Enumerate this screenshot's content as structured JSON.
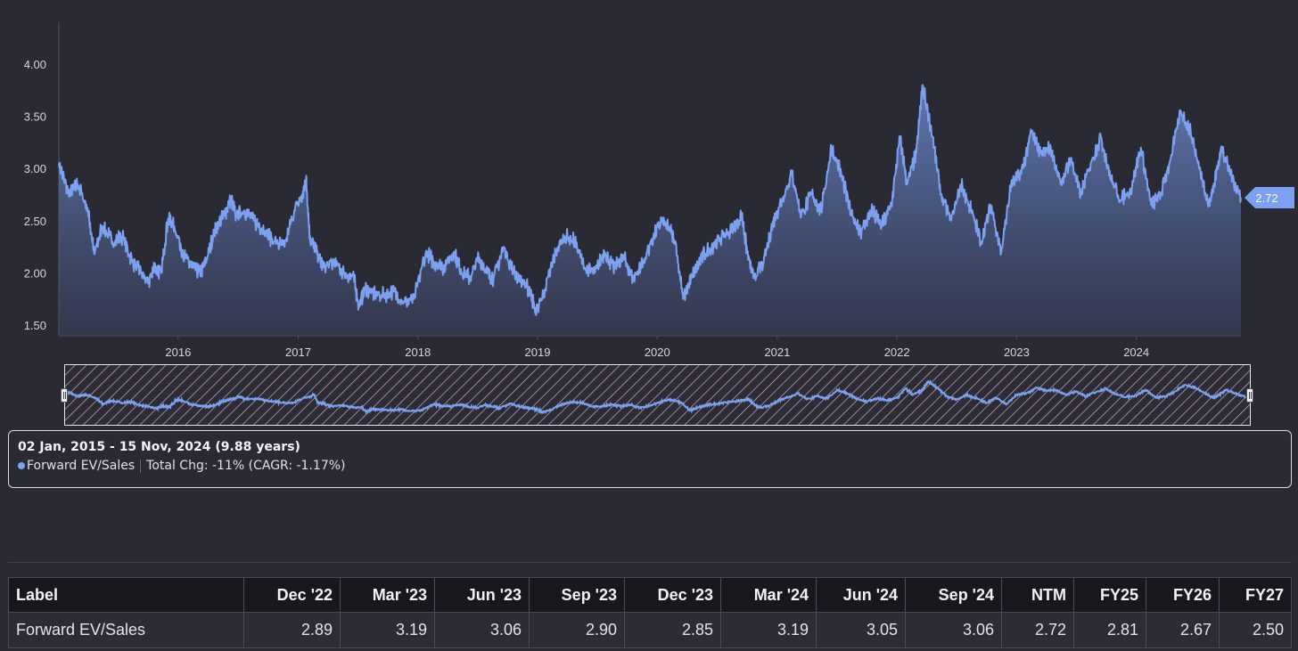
{
  "chart_data": {
    "type": "area",
    "x_range": [
      "2015-01-02",
      "2024-11-15"
    ],
    "ylim": [
      1.5,
      4.35
    ],
    "yticks": [
      "1.50",
      "2.00",
      "2.50",
      "3.00",
      "3.50",
      "4.00"
    ],
    "xticks": [
      "2016",
      "2017",
      "2018",
      "2019",
      "2020",
      "2021",
      "2022",
      "2023",
      "2024"
    ],
    "series": [
      {
        "name": "Forward EV/Sales",
        "color": "#7ba1f0",
        "points": [
          [
            "2015-01-02",
            3.05
          ],
          [
            "2015-02-01",
            2.75
          ],
          [
            "2015-03-01",
            2.85
          ],
          [
            "2015-04-01",
            2.6
          ],
          [
            "2015-04-20",
            2.18
          ],
          [
            "2015-05-15",
            2.45
          ],
          [
            "2015-06-15",
            2.3
          ],
          [
            "2015-07-15",
            2.35
          ],
          [
            "2015-08-15",
            2.1
          ],
          [
            "2015-09-10",
            2.0
          ],
          [
            "2015-10-01",
            1.9
          ],
          [
            "2015-10-20",
            2.05
          ],
          [
            "2015-11-10",
            2.0
          ],
          [
            "2015-12-01",
            2.52
          ],
          [
            "2015-12-20",
            2.45
          ],
          [
            "2016-01-20",
            2.15
          ],
          [
            "2016-02-15",
            2.05
          ],
          [
            "2016-03-10",
            2.0
          ],
          [
            "2016-03-30",
            2.15
          ],
          [
            "2016-04-20",
            2.4
          ],
          [
            "2016-05-20",
            2.55
          ],
          [
            "2016-06-10",
            2.72
          ],
          [
            "2016-06-25",
            2.55
          ],
          [
            "2016-07-20",
            2.6
          ],
          [
            "2016-08-20",
            2.5
          ],
          [
            "2016-09-20",
            2.4
          ],
          [
            "2016-10-20",
            2.3
          ],
          [
            "2016-11-20",
            2.25
          ],
          [
            "2016-12-20",
            2.6
          ],
          [
            "2017-01-15",
            2.75
          ],
          [
            "2017-01-25",
            2.9
          ],
          [
            "2017-02-05",
            2.35
          ],
          [
            "2017-02-25",
            2.2
          ],
          [
            "2017-03-20",
            2.05
          ],
          [
            "2017-04-20",
            2.1
          ],
          [
            "2017-05-20",
            2.0
          ],
          [
            "2017-06-20",
            1.95
          ],
          [
            "2017-07-05",
            1.68
          ],
          [
            "2017-07-25",
            1.85
          ],
          [
            "2017-08-20",
            1.8
          ],
          [
            "2017-09-20",
            1.78
          ],
          [
            "2017-10-20",
            1.82
          ],
          [
            "2017-11-20",
            1.72
          ],
          [
            "2017-12-20",
            1.75
          ],
          [
            "2018-01-25",
            2.2
          ],
          [
            "2018-02-20",
            2.1
          ],
          [
            "2018-03-20",
            2.05
          ],
          [
            "2018-04-20",
            2.2
          ],
          [
            "2018-05-15",
            2.0
          ],
          [
            "2018-06-10",
            1.95
          ],
          [
            "2018-07-05",
            2.15
          ],
          [
            "2018-08-01",
            2.0
          ],
          [
            "2018-08-20",
            1.95
          ],
          [
            "2018-09-20",
            2.25
          ],
          [
            "2018-10-20",
            2.0
          ],
          [
            "2018-11-20",
            1.9
          ],
          [
            "2018-12-10",
            1.82
          ],
          [
            "2018-12-26",
            1.62
          ],
          [
            "2019-01-25",
            1.85
          ],
          [
            "2019-02-25",
            2.2
          ],
          [
            "2019-03-25",
            2.35
          ],
          [
            "2019-04-25",
            2.3
          ],
          [
            "2019-05-25",
            2.05
          ],
          [
            "2019-06-25",
            2.0
          ],
          [
            "2019-07-25",
            2.2
          ],
          [
            "2019-08-20",
            2.05
          ],
          [
            "2019-09-20",
            2.15
          ],
          [
            "2019-10-20",
            1.95
          ],
          [
            "2019-11-20",
            2.1
          ],
          [
            "2019-12-20",
            2.35
          ],
          [
            "2020-01-15",
            2.5
          ],
          [
            "2020-02-10",
            2.4
          ],
          [
            "2020-02-25",
            2.3
          ],
          [
            "2020-03-20",
            1.75
          ],
          [
            "2020-04-15",
            1.95
          ],
          [
            "2020-05-15",
            2.15
          ],
          [
            "2020-06-15",
            2.25
          ],
          [
            "2020-07-15",
            2.35
          ],
          [
            "2020-08-15",
            2.4
          ],
          [
            "2020-09-15",
            2.55
          ],
          [
            "2020-10-01",
            2.2
          ],
          [
            "2020-10-20",
            1.95
          ],
          [
            "2020-11-20",
            2.1
          ],
          [
            "2020-12-20",
            2.5
          ],
          [
            "2021-01-15",
            2.7
          ],
          [
            "2021-02-15",
            2.95
          ],
          [
            "2021-03-15",
            2.55
          ],
          [
            "2021-04-15",
            2.75
          ],
          [
            "2021-05-15",
            2.6
          ],
          [
            "2021-06-15",
            3.2
          ],
          [
            "2021-07-15",
            2.95
          ],
          [
            "2021-08-15",
            2.55
          ],
          [
            "2021-09-15",
            2.4
          ],
          [
            "2021-10-15",
            2.6
          ],
          [
            "2021-11-15",
            2.45
          ],
          [
            "2021-12-15",
            2.65
          ],
          [
            "2022-01-10",
            3.3
          ],
          [
            "2022-02-01",
            2.85
          ],
          [
            "2022-03-01",
            3.15
          ],
          [
            "2022-03-20",
            3.8
          ],
          [
            "2022-04-20",
            3.3
          ],
          [
            "2022-05-15",
            2.75
          ],
          [
            "2022-06-15",
            2.5
          ],
          [
            "2022-07-15",
            2.85
          ],
          [
            "2022-08-15",
            2.6
          ],
          [
            "2022-09-15",
            2.3
          ],
          [
            "2022-10-15",
            2.65
          ],
          [
            "2022-11-15",
            2.2
          ],
          [
            "2022-12-15",
            2.85
          ],
          [
            "2023-01-15",
            2.95
          ],
          [
            "2023-02-15",
            3.35
          ],
          [
            "2023-03-15",
            3.15
          ],
          [
            "2023-04-15",
            3.2
          ],
          [
            "2023-05-15",
            2.85
          ],
          [
            "2023-06-15",
            3.1
          ],
          [
            "2023-07-15",
            2.75
          ],
          [
            "2023-08-15",
            3.05
          ],
          [
            "2023-09-15",
            3.3
          ],
          [
            "2023-10-15",
            2.9
          ],
          [
            "2023-11-15",
            2.7
          ],
          [
            "2023-12-15",
            2.8
          ],
          [
            "2024-01-15",
            3.2
          ],
          [
            "2024-02-15",
            2.65
          ],
          [
            "2024-03-15",
            2.75
          ],
          [
            "2024-04-15",
            3.1
          ],
          [
            "2024-05-15",
            3.55
          ],
          [
            "2024-06-15",
            3.35
          ],
          [
            "2024-07-15",
            2.95
          ],
          [
            "2024-08-10",
            2.65
          ],
          [
            "2024-08-25",
            2.85
          ],
          [
            "2024-09-15",
            3.2
          ],
          [
            "2024-10-15",
            2.95
          ],
          [
            "2024-11-15",
            2.72
          ]
        ]
      }
    ],
    "last_value_label": "2.72",
    "grid": false
  },
  "info": {
    "range_label": "02 Jan, 2015 - 15 Nov, 2024 (9.88 years)",
    "series_name": "Forward EV/Sales",
    "change_text": "Total Chg: -11% (CAGR: -1.17%)"
  },
  "table": {
    "headers": [
      "Label",
      "Dec '22",
      "Mar '23",
      "Jun '23",
      "Sep '23",
      "Dec '23",
      "Mar '24",
      "Jun '24",
      "Sep '24",
      "NTM",
      "FY25",
      "FY26",
      "FY27"
    ],
    "rows": [
      [
        "Forward EV/Sales",
        "2.89",
        "3.19",
        "3.06",
        "2.90",
        "2.85",
        "3.19",
        "3.05",
        "3.06",
        "2.72",
        "2.81",
        "2.67",
        "2.50"
      ]
    ]
  }
}
